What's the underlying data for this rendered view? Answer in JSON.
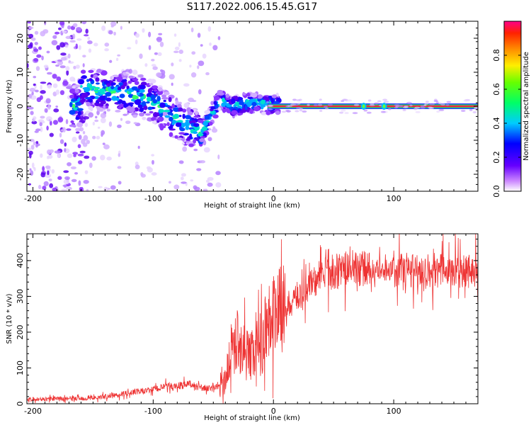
{
  "figure": {
    "title": "S117.2022.006.15.45.G17"
  },
  "chart_data": [
    {
      "type": "heatmap",
      "xlabel": "Height of straight line (km)",
      "ylabel": "Frequency (Hz)",
      "xlim": [
        -205,
        170
      ],
      "ylim": [
        -25,
        25
      ],
      "xticks": [
        -200,
        -100,
        0,
        100
      ],
      "yticks": [
        -20,
        -10,
        0,
        10,
        20
      ],
      "colorbar": {
        "label": "Normalized spectral amplitude",
        "range": [
          0,
          1
        ],
        "ticks": [
          0.0,
          0.2,
          0.4,
          0.6,
          0.8
        ]
      },
      "ridge": [
        {
          "x": -160,
          "y": 5.5
        },
        {
          "x": -140,
          "y": 4.5
        },
        {
          "x": -120,
          "y": 3.5
        },
        {
          "x": -100,
          "y": 1.5
        },
        {
          "x": -85,
          "y": -3
        },
        {
          "x": -70,
          "y": -6
        },
        {
          "x": -60,
          "y": -8
        },
        {
          "x": -45,
          "y": 2
        },
        {
          "x": -35,
          "y": 0
        },
        {
          "x": -20,
          "y": 1
        },
        {
          "x": 0,
          "y": 0.5
        },
        {
          "x": 50,
          "y": 0
        },
        {
          "x": 100,
          "y": 0
        },
        {
          "x": 170,
          "y": 0
        }
      ]
    },
    {
      "type": "line",
      "xlabel": "Height of straight line (km)",
      "ylabel": "SNR (10 * v/v)",
      "xlim": [
        -205,
        170
      ],
      "ylim": [
        0,
        475
      ],
      "xticks": [
        -200,
        -100,
        0,
        100
      ],
      "yticks": [
        0,
        100,
        200,
        300,
        400
      ],
      "series": [
        {
          "color": "#ee3333",
          "x": [
            -205,
            -180,
            -160,
            -150,
            -130,
            -110,
            -100,
            -90,
            -80,
            -70,
            -60,
            -50,
            -40,
            -35,
            -30,
            -25,
            -20,
            -15,
            -10,
            -5,
            0,
            10,
            20,
            30,
            40,
            50,
            60,
            70,
            80,
            90,
            100,
            110,
            120,
            140,
            170
          ],
          "y": [
            12,
            14,
            15,
            16,
            25,
            35,
            40,
            48,
            50,
            55,
            45,
            40,
            70,
            150,
            180,
            150,
            130,
            150,
            180,
            230,
            250,
            270,
            300,
            330,
            360,
            370,
            375,
            380,
            375,
            370,
            380,
            370,
            375,
            372,
            375
          ]
        }
      ]
    }
  ]
}
